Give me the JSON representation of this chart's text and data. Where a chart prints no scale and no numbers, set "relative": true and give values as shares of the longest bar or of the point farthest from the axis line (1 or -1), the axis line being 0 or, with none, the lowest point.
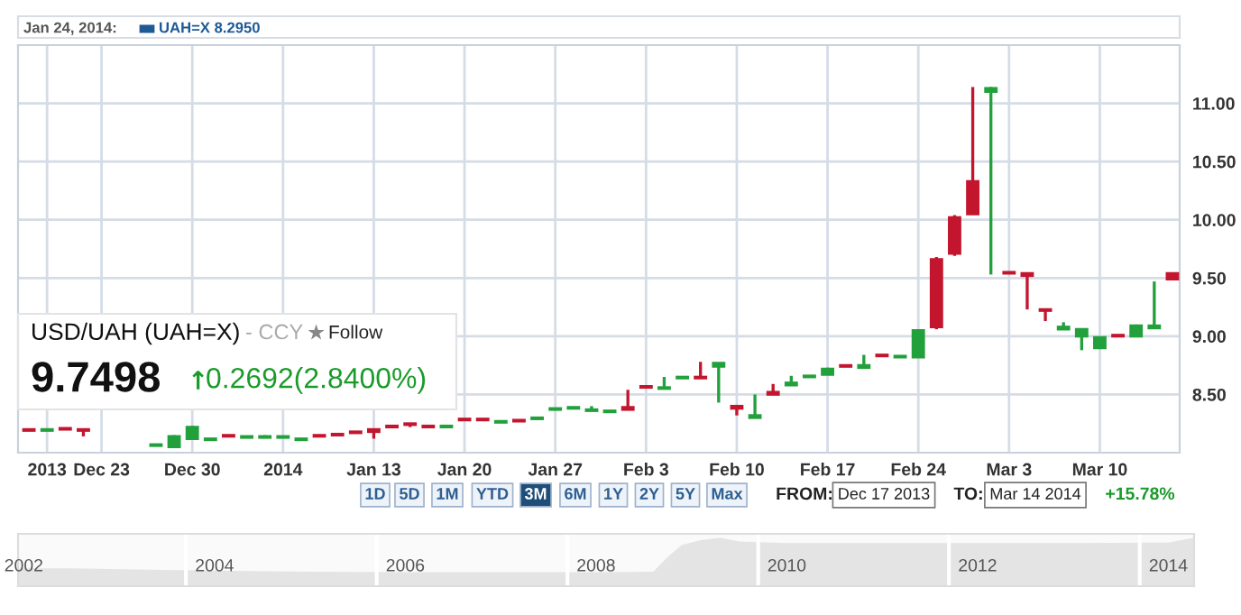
{
  "chart_data": [
    {
      "type": "candlestick",
      "categories": [
        null,
        "2013",
        null,
        null,
        "Dec 23",
        null,
        null,
        null,
        null,
        "Dec 30",
        null,
        null,
        null,
        null,
        "2014",
        null,
        null,
        null,
        null,
        "Jan 13",
        null,
        null,
        null,
        null,
        "Jan 20",
        null,
        null,
        null,
        null,
        "Jan 27",
        null,
        null,
        null,
        null,
        "Feb 3",
        null,
        null,
        null,
        null,
        "Feb 10",
        null,
        null,
        null,
        null,
        "Feb 17",
        null,
        null,
        null,
        null,
        "Feb 24",
        null,
        null,
        null,
        null,
        "Mar 3",
        null,
        null,
        null,
        null,
        "Mar 10",
        null,
        null,
        null,
        null
      ],
      "ohlc": [
        [
          8.2,
          8.2,
          8.19,
          8.19
        ],
        [
          8.19,
          8.2,
          8.19,
          8.2
        ],
        [
          8.21,
          8.21,
          8.2,
          8.2
        ],
        [
          8.2,
          8.2,
          8.14,
          8.19
        ],
        null,
        null,
        null,
        [
          8.06,
          8.07,
          8.06,
          8.07
        ],
        [
          8.05,
          8.15,
          8.05,
          8.14
        ],
        [
          8.12,
          8.23,
          8.12,
          8.22
        ],
        [
          8.11,
          8.12,
          8.11,
          8.12
        ],
        [
          8.15,
          8.15,
          8.14,
          8.14
        ],
        [
          8.13,
          8.14,
          8.13,
          8.14
        ],
        [
          8.13,
          8.15,
          8.13,
          8.14
        ],
        [
          8.13,
          8.14,
          8.13,
          8.14
        ],
        [
          8.11,
          8.12,
          8.11,
          8.12
        ],
        [
          8.15,
          8.15,
          8.14,
          8.14
        ],
        [
          8.16,
          8.16,
          8.15,
          8.15
        ],
        [
          8.18,
          8.18,
          8.17,
          8.17
        ],
        [
          8.2,
          8.2,
          8.12,
          8.18
        ],
        [
          8.23,
          8.23,
          8.22,
          8.22
        ],
        [
          8.25,
          8.25,
          8.22,
          8.24
        ],
        [
          8.23,
          8.23,
          8.22,
          8.22
        ],
        [
          8.22,
          8.23,
          8.22,
          8.23
        ],
        [
          8.29,
          8.29,
          8.28,
          8.28
        ],
        [
          8.29,
          8.29,
          8.28,
          8.28
        ],
        [
          8.26,
          8.27,
          8.26,
          8.27
        ],
        [
          8.28,
          8.28,
          8.27,
          8.27
        ],
        [
          8.29,
          8.3,
          8.29,
          8.3
        ],
        [
          8.37,
          8.38,
          8.37,
          8.38
        ],
        [
          8.38,
          8.39,
          8.38,
          8.39
        ],
        [
          8.36,
          8.4,
          8.36,
          8.37
        ],
        [
          8.35,
          8.36,
          8.35,
          8.36
        ],
        [
          8.39,
          8.54,
          8.37,
          8.37
        ],
        [
          8.57,
          8.57,
          8.56,
          8.56
        ],
        [
          8.55,
          8.65,
          8.55,
          8.56
        ],
        [
          8.64,
          8.65,
          8.64,
          8.65
        ],
        [
          8.65,
          8.78,
          8.64,
          8.64
        ],
        [
          8.74,
          8.77,
          8.43,
          8.77
        ],
        [
          8.4,
          8.4,
          8.32,
          8.38
        ],
        [
          8.3,
          8.5,
          8.3,
          8.32
        ],
        [
          8.52,
          8.59,
          8.5,
          8.5
        ],
        [
          8.58,
          8.66,
          8.58,
          8.6
        ],
        [
          8.65,
          8.66,
          8.65,
          8.66
        ],
        [
          8.67,
          8.73,
          8.67,
          8.72
        ],
        [
          8.75,
          8.75,
          8.74,
          8.74
        ],
        [
          8.73,
          8.84,
          8.73,
          8.75
        ],
        [
          8.84,
          8.84,
          8.83,
          8.83
        ],
        [
          8.82,
          8.83,
          8.82,
          8.83
        ],
        [
          8.82,
          9.06,
          8.82,
          9.05
        ],
        [
          9.66,
          9.68,
          9.06,
          9.08
        ],
        [
          10.02,
          10.04,
          9.69,
          9.71
        ],
        [
          10.33,
          11.14,
          10.05,
          10.05
        ],
        [
          11.1,
          11.14,
          9.53,
          11.13
        ],
        [
          9.55,
          9.55,
          9.54,
          9.54
        ],
        [
          9.54,
          9.54,
          9.23,
          9.52
        ],
        [
          9.23,
          9.23,
          9.13,
          9.22
        ],
        [
          9.06,
          9.12,
          9.06,
          9.08
        ],
        [
          9.0,
          9.06,
          8.88,
          9.06
        ],
        [
          8.9,
          9.0,
          8.89,
          8.99
        ],
        [
          9.01,
          9.01,
          9.0,
          9.0
        ],
        [
          9.0,
          9.1,
          9.0,
          9.09
        ],
        [
          9.07,
          9.47,
          9.07,
          9.09
        ],
        [
          9.54,
          9.54,
          9.48,
          9.49
        ]
      ],
      "colors": [
        "#c3162e",
        "#22a03c",
        "#c3162e",
        "#c3162e",
        null,
        null,
        null,
        "#22a03c",
        "#22a03c",
        "#22a03c",
        "#22a03c",
        "#c3162e",
        "#22a03c",
        "#22a03c",
        "#22a03c",
        "#22a03c",
        "#c3162e",
        "#c3162e",
        "#c3162e",
        "#c3162e",
        "#c3162e",
        "#c3162e",
        "#c3162e",
        "#22a03c",
        "#c3162e",
        "#c3162e",
        "#22a03c",
        "#c3162e",
        "#22a03c",
        "#22a03c",
        "#22a03c",
        "#22a03c",
        "#22a03c",
        "#c3162e",
        "#c3162e",
        "#22a03c",
        "#22a03c",
        "#c3162e",
        "#22a03c",
        "#c3162e",
        "#22a03c",
        "#c3162e",
        "#22a03c",
        "#22a03c",
        "#22a03c",
        "#c3162e",
        "#22a03c",
        "#c3162e",
        "#22a03c",
        "#22a03c",
        "#c3162e",
        "#c3162e",
        "#c3162e",
        "#22a03c",
        "#c3162e",
        "#c3162e",
        "#c3162e",
        "#22a03c",
        "#22a03c",
        "#22a03c",
        "#c3162e",
        "#22a03c",
        "#22a03c",
        "#c3162e"
      ],
      "ylim": [
        8.0,
        11.5
      ],
      "yticks": [
        {
          "value": 8.5,
          "label": "8.50"
        },
        {
          "value": 9.0,
          "label": "9.00"
        },
        {
          "value": 9.5,
          "label": "9.50"
        },
        {
          "value": 10.0,
          "label": "10.00"
        },
        {
          "value": 10.5,
          "label": "10.50"
        },
        {
          "value": 11.0,
          "label": "11.00"
        }
      ],
      "grid": true,
      "annotations": [
        "Jan 24, 2014:",
        "UAH=X 8.2950",
        "USD/UAH (UAH=X)",
        "- CCY",
        "★",
        "Follow",
        "9.7498",
        "↑",
        "0.2692(2.8400%)",
        "1D",
        "5D",
        "1M",
        "YTD",
        "3M",
        "6M",
        "1Y",
        "2Y",
        "5Y",
        "Max",
        "FROM:",
        "Dec 17 2013",
        "TO:",
        "Mar 14 2014",
        "+15.78%"
      ]
    },
    {
      "type": "area",
      "relative": true,
      "color": "#e4e4e4",
      "x": [
        2001.94,
        2002.5,
        2003.3,
        2004.0,
        2005.0,
        2006.0,
        2007.0,
        2008.0,
        2008.6,
        2008.75,
        2008.9,
        2009.1,
        2009.3,
        2009.5,
        2010.0,
        2011.0,
        2012.0,
        2013.0,
        2014.0,
        2014.27
      ],
      "values": [
        0.37,
        0.37,
        0.34,
        0.32,
        0.3,
        0.29,
        0.29,
        0.29,
        0.3,
        0.6,
        0.85,
        0.95,
        1.0,
        0.92,
        0.89,
        0.89,
        0.89,
        0.89,
        0.9,
        1.0
      ],
      "xlim": [
        2001.94,
        2014.27
      ],
      "xticks": [
        {
          "value": 2002,
          "label": "2002"
        },
        {
          "value": 2004,
          "label": "2004"
        },
        {
          "value": 2006,
          "label": "2006"
        },
        {
          "value": 2008,
          "label": "2008"
        },
        {
          "value": 2010,
          "label": "2010"
        },
        {
          "value": 2012,
          "label": "2012"
        },
        {
          "value": 2014,
          "label": "2014"
        }
      ],
      "grid": "x"
    }
  ]
}
